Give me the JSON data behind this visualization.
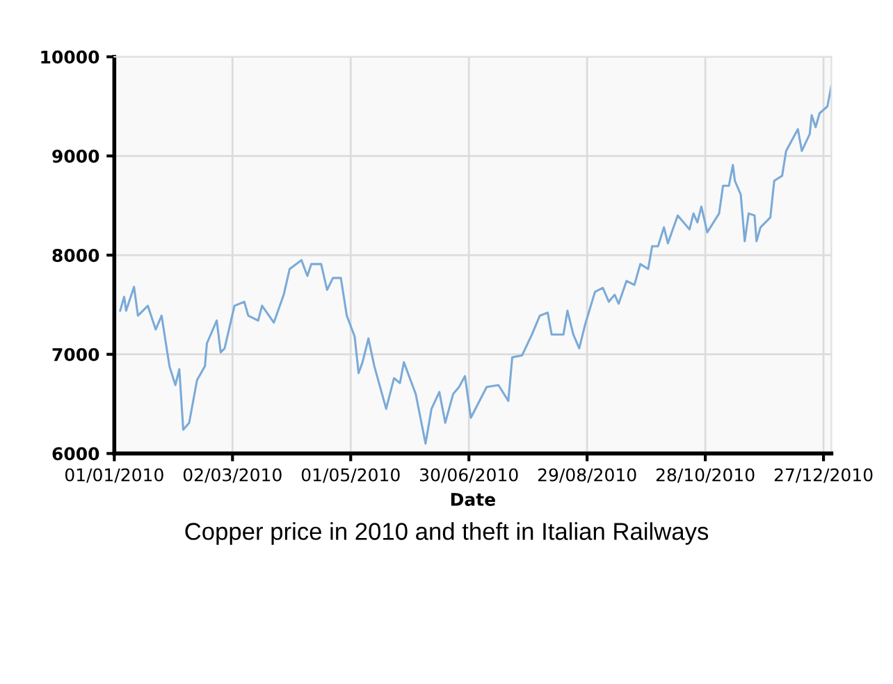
{
  "chart_data": {
    "type": "line",
    "title": "Copper price in 2010 and theft in Italian Railways",
    "xlabel": "Date",
    "x": [
      "2010-01-04",
      "2010-01-06",
      "2010-01-07",
      "2010-01-11",
      "2010-01-13",
      "2010-01-18",
      "2010-01-22",
      "2010-01-25",
      "2010-01-29",
      "2010-02-01",
      "2010-02-03",
      "2010-02-05",
      "2010-02-08",
      "2010-02-12",
      "2010-02-16",
      "2010-02-17",
      "2010-02-22",
      "2010-02-24",
      "2010-02-26",
      "2010-03-03",
      "2010-03-08",
      "2010-03-10",
      "2010-03-15",
      "2010-03-17",
      "2010-03-23",
      "2010-03-28",
      "2010-03-31",
      "2010-04-06",
      "2010-04-09",
      "2010-04-11",
      "2010-04-16",
      "2010-04-19",
      "2010-04-22",
      "2010-04-26",
      "2010-04-29",
      "2010-05-03",
      "2010-05-05",
      "2010-05-07",
      "2010-05-10",
      "2010-05-13",
      "2010-05-19",
      "2010-05-23",
      "2010-05-26",
      "2010-05-28",
      "2010-06-03",
      "2010-06-08",
      "2010-06-11",
      "2010-06-15",
      "2010-06-18",
      "2010-06-22",
      "2010-06-25",
      "2010-06-28",
      "2010-07-01",
      "2010-07-09",
      "2010-07-15",
      "2010-07-20",
      "2010-07-22",
      "2010-07-27",
      "2010-08-01",
      "2010-08-05",
      "2010-08-09",
      "2010-08-11",
      "2010-08-17",
      "2010-08-19",
      "2010-08-22",
      "2010-08-25",
      "2010-08-28",
      "2010-09-02",
      "2010-09-06",
      "2010-09-09",
      "2010-09-12",
      "2010-09-14",
      "2010-09-18",
      "2010-09-22",
      "2010-09-25",
      "2010-09-29",
      "2010-10-01",
      "2010-10-04",
      "2010-10-07",
      "2010-10-09",
      "2010-10-14",
      "2010-10-20",
      "2010-10-22",
      "2010-10-24",
      "2010-10-26",
      "2010-10-29",
      "2010-11-04",
      "2010-11-06",
      "2010-11-09",
      "2010-11-11",
      "2010-11-12",
      "2010-11-15",
      "2010-11-17",
      "2010-11-19",
      "2010-11-22",
      "2010-11-23",
      "2010-11-25",
      "2010-11-30",
      "2010-12-02",
      "2010-12-06",
      "2010-12-08",
      "2010-12-14",
      "2010-12-16",
      "2010-12-20",
      "2010-12-21",
      "2010-12-23",
      "2010-12-25",
      "2010-12-29",
      "2010-12-31"
    ],
    "series": [
      {
        "color": "#7aaad8",
        "values": [
          7440,
          7580,
          7440,
          7680,
          7390,
          7490,
          7250,
          7390,
          6880,
          6690,
          6850,
          6240,
          6310,
          6740,
          6880,
          7110,
          7340,
          7020,
          7060,
          7490,
          7530,
          7390,
          7340,
          7490,
          7320,
          7600,
          7860,
          7950,
          7790,
          7910,
          7910,
          7650,
          7770,
          7770,
          7390,
          7180,
          6810,
          6920,
          7160,
          6880,
          6450,
          6760,
          6710,
          6920,
          6600,
          6100,
          6450,
          6620,
          6310,
          6600,
          6670,
          6780,
          6360,
          6670,
          6690,
          6530,
          6970,
          6990,
          7200,
          7390,
          7420,
          7200,
          7200,
          7440,
          7200,
          7060,
          7300,
          7630,
          7670,
          7530,
          7600,
          7510,
          7740,
          7700,
          7910,
          7860,
          8090,
          8090,
          8280,
          8120,
          8400,
          8260,
          8420,
          8330,
          8490,
          8230,
          8420,
          8700,
          8700,
          8910,
          8750,
          8610,
          8140,
          8420,
          8400,
          8140,
          8280,
          8380,
          8750,
          8800,
          9050,
          9270,
          9050,
          9220,
          9410,
          9290,
          9430,
          9500,
          9710
        ]
      }
    ],
    "xlim": [
      "2010-01-01",
      "2010-12-31"
    ],
    "xticks": [
      {
        "value": "2010-01-01",
        "label": "01/01/2010"
      },
      {
        "value": "2010-03-02",
        "label": "02/03/2010"
      },
      {
        "value": "2010-05-01",
        "label": "01/05/2010"
      },
      {
        "value": "2010-06-30",
        "label": "30/06/2010"
      },
      {
        "value": "2010-08-29",
        "label": "29/08/2010"
      },
      {
        "value": "2010-10-28",
        "label": "28/10/2010"
      },
      {
        "value": "2010-12-27",
        "label": "27/12/2010"
      }
    ],
    "ylim": [
      6000,
      10000
    ],
    "yticks": [
      6000,
      7000,
      8000,
      9000,
      10000
    ],
    "grid": true,
    "legend": false,
    "marker": "none",
    "line_style": "solid"
  }
}
